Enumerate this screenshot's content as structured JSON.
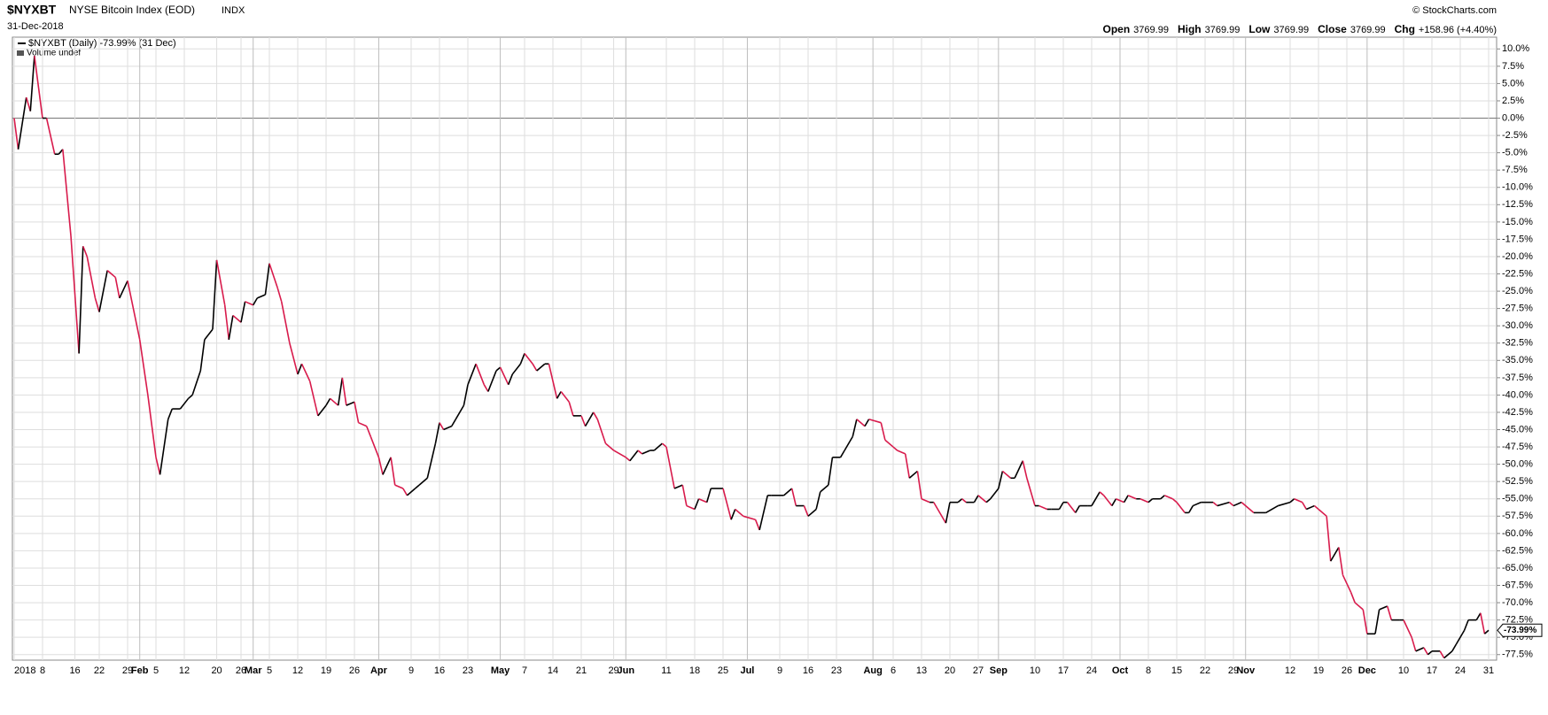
{
  "header": {
    "symbol": "$NYXBT",
    "name": "NYSE Bitcoin Index (EOD)",
    "exchange": "INDX",
    "date": "31-Dec-2018",
    "source": "© StockCharts.com",
    "quote": [
      {
        "label": "Open",
        "value": "3769.99"
      },
      {
        "label": "High",
        "value": "3769.99"
      },
      {
        "label": "Low",
        "value": "3769.99"
      },
      {
        "label": "Close",
        "value": "3769.99"
      },
      {
        "label": "Chg",
        "value": "+158.96 (+4.40%)"
      }
    ],
    "legend": "$NYXBT (Daily) -73.99% (31 Dec)",
    "volume": "Volume undef"
  },
  "chart_data": {
    "type": "line",
    "grid": true,
    "last_label": "-73.99%",
    "xlim": [
      "2018-01-01",
      "2018-12-31"
    ],
    "ylim": [
      -78.3,
      11.7
    ],
    "yticks": [
      {
        "value": 10,
        "label": "10.0%"
      },
      {
        "value": 7.5,
        "label": "7.5%"
      },
      {
        "value": 5,
        "label": "5.0%"
      },
      {
        "value": 2.5,
        "label": "2.5%"
      },
      {
        "value": 0,
        "label": "0.0%"
      },
      {
        "value": -2.5,
        "label": "-2.5%"
      },
      {
        "value": -5,
        "label": "-5.0%"
      },
      {
        "value": -7.5,
        "label": "-7.5%"
      },
      {
        "value": -10,
        "label": "-10.0%"
      },
      {
        "value": -12.5,
        "label": "-12.5%"
      },
      {
        "value": -15,
        "label": "-15.0%"
      },
      {
        "value": -17.5,
        "label": "-17.5%"
      },
      {
        "value": -20,
        "label": "-20.0%"
      },
      {
        "value": -22.5,
        "label": "-22.5%"
      },
      {
        "value": -25,
        "label": "-25.0%"
      },
      {
        "value": -27.5,
        "label": "-27.5%"
      },
      {
        "value": -30,
        "label": "-30.0%"
      },
      {
        "value": -32.5,
        "label": "-32.5%"
      },
      {
        "value": -35,
        "label": "-35.0%"
      },
      {
        "value": -37.5,
        "label": "-37.5%"
      },
      {
        "value": -40,
        "label": "-40.0%"
      },
      {
        "value": -42.5,
        "label": "-42.5%"
      },
      {
        "value": -45,
        "label": "-45.0%"
      },
      {
        "value": -47.5,
        "label": "-47.5%"
      },
      {
        "value": -50,
        "label": "-50.0%"
      },
      {
        "value": -52.5,
        "label": "-52.5%"
      },
      {
        "value": -55,
        "label": "-55.0%"
      },
      {
        "value": -57.5,
        "label": "-57.5%"
      },
      {
        "value": -60,
        "label": "-60.0%"
      },
      {
        "value": -62.5,
        "label": "-62.5%"
      },
      {
        "value": -65,
        "label": "-65.0%"
      },
      {
        "value": -67.5,
        "label": "-67.5%"
      },
      {
        "value": -70,
        "label": "-70.0%"
      },
      {
        "value": -72.5,
        "label": "-72.5%"
      },
      {
        "value": -75,
        "label": "-75.0%"
      },
      {
        "value": -77.5,
        "label": "-77.5%"
      }
    ],
    "xticks": [
      {
        "value": "2018-01-01",
        "label": "2018"
      },
      {
        "value": "2018-01-08",
        "label": "8"
      },
      {
        "value": "2018-01-16",
        "label": "16"
      },
      {
        "value": "2018-01-22",
        "label": "22"
      },
      {
        "value": "2018-01-29",
        "label": "29"
      },
      {
        "value": "2018-02-01",
        "label": "Feb"
      },
      {
        "value": "2018-02-05",
        "label": "5"
      },
      {
        "value": "2018-02-12",
        "label": "12"
      },
      {
        "value": "2018-02-20",
        "label": "20"
      },
      {
        "value": "2018-02-26",
        "label": "26"
      },
      {
        "value": "2018-03-01",
        "label": "Mar"
      },
      {
        "value": "2018-03-05",
        "label": "5"
      },
      {
        "value": "2018-03-12",
        "label": "12"
      },
      {
        "value": "2018-03-19",
        "label": "19"
      },
      {
        "value": "2018-03-26",
        "label": "26"
      },
      {
        "value": "2018-04-01",
        "label": "Apr"
      },
      {
        "value": "2018-04-09",
        "label": "9"
      },
      {
        "value": "2018-04-16",
        "label": "16"
      },
      {
        "value": "2018-04-23",
        "label": "23"
      },
      {
        "value": "2018-05-01",
        "label": "May"
      },
      {
        "value": "2018-05-07",
        "label": "7"
      },
      {
        "value": "2018-05-14",
        "label": "14"
      },
      {
        "value": "2018-05-21",
        "label": "21"
      },
      {
        "value": "2018-05-29",
        "label": "29"
      },
      {
        "value": "2018-06-01",
        "label": "Jun"
      },
      {
        "value": "2018-06-11",
        "label": "11"
      },
      {
        "value": "2018-06-18",
        "label": "18"
      },
      {
        "value": "2018-06-25",
        "label": "25"
      },
      {
        "value": "2018-07-01",
        "label": "Jul"
      },
      {
        "value": "2018-07-09",
        "label": "9"
      },
      {
        "value": "2018-07-16",
        "label": "16"
      },
      {
        "value": "2018-07-23",
        "label": "23"
      },
      {
        "value": "2018-08-01",
        "label": "Aug"
      },
      {
        "value": "2018-08-06",
        "label": "6"
      },
      {
        "value": "2018-08-13",
        "label": "13"
      },
      {
        "value": "2018-08-20",
        "label": "20"
      },
      {
        "value": "2018-08-27",
        "label": "27"
      },
      {
        "value": "2018-09-01",
        "label": "Sep"
      },
      {
        "value": "2018-09-10",
        "label": "10"
      },
      {
        "value": "2018-09-17",
        "label": "17"
      },
      {
        "value": "2018-09-24",
        "label": "24"
      },
      {
        "value": "2018-10-01",
        "label": "Oct"
      },
      {
        "value": "2018-10-08",
        "label": "8"
      },
      {
        "value": "2018-10-15",
        "label": "15"
      },
      {
        "value": "2018-10-22",
        "label": "22"
      },
      {
        "value": "2018-10-29",
        "label": "29"
      },
      {
        "value": "2018-11-01",
        "label": "Nov"
      },
      {
        "value": "2018-11-12",
        "label": "12"
      },
      {
        "value": "2018-11-19",
        "label": "19"
      },
      {
        "value": "2018-11-26",
        "label": "26"
      },
      {
        "value": "2018-12-01",
        "label": "Dec"
      },
      {
        "value": "2018-12-10",
        "label": "10"
      },
      {
        "value": "2018-12-17",
        "label": "17"
      },
      {
        "value": "2018-12-24",
        "label": "24"
      },
      {
        "value": "2018-12-31",
        "label": "31"
      }
    ],
    "series": [
      {
        "name": "$NYXBT",
        "up_color": "#000000",
        "down_color": "#d81b4c",
        "x": [
          "2018-01-01",
          "2018-01-02",
          "2018-01-04",
          "2018-01-05",
          "2018-01-06",
          "2018-01-08",
          "2018-01-09",
          "2018-01-11",
          "2018-01-12",
          "2018-01-13",
          "2018-01-15",
          "2018-01-17",
          "2018-01-18",
          "2018-01-19",
          "2018-01-21",
          "2018-01-22",
          "2018-01-24",
          "2018-01-26",
          "2018-01-27",
          "2018-01-29",
          "2018-02-01",
          "2018-02-03",
          "2018-02-05",
          "2018-02-06",
          "2018-02-08",
          "2018-02-09",
          "2018-02-11",
          "2018-02-13",
          "2018-02-14",
          "2018-02-16",
          "2018-02-17",
          "2018-02-19",
          "2018-02-20",
          "2018-02-22",
          "2018-02-23",
          "2018-02-24",
          "2018-02-26",
          "2018-02-27",
          "2018-03-01",
          "2018-03-02",
          "2018-03-04",
          "2018-03-05",
          "2018-03-07",
          "2018-03-08",
          "2018-03-10",
          "2018-03-12",
          "2018-03-13",
          "2018-03-15",
          "2018-03-17",
          "2018-03-19",
          "2018-03-20",
          "2018-03-22",
          "2018-03-23",
          "2018-03-24",
          "2018-03-26",
          "2018-03-27",
          "2018-03-29",
          "2018-03-30",
          "2018-04-01",
          "2018-04-02",
          "2018-04-04",
          "2018-04-05",
          "2018-04-07",
          "2018-04-08",
          "2018-04-10",
          "2018-04-11",
          "2018-04-13",
          "2018-04-15",
          "2018-04-16",
          "2018-04-17",
          "2018-04-19",
          "2018-04-20",
          "2018-04-22",
          "2018-04-23",
          "2018-04-25",
          "2018-04-27",
          "2018-04-28",
          "2018-04-30",
          "2018-05-01",
          "2018-05-03",
          "2018-05-04",
          "2018-05-06",
          "2018-05-07",
          "2018-05-09",
          "2018-05-10",
          "2018-05-12",
          "2018-05-13",
          "2018-05-15",
          "2018-05-16",
          "2018-05-18",
          "2018-05-19",
          "2018-05-21",
          "2018-05-22",
          "2018-05-24",
          "2018-05-25",
          "2018-05-27",
          "2018-05-29",
          "2018-06-01",
          "2018-06-02",
          "2018-06-04",
          "2018-06-05",
          "2018-06-07",
          "2018-06-08",
          "2018-06-10",
          "2018-06-11",
          "2018-06-13",
          "2018-06-15",
          "2018-06-16",
          "2018-06-18",
          "2018-06-19",
          "2018-06-21",
          "2018-06-22",
          "2018-06-25",
          "2018-06-27",
          "2018-06-28",
          "2018-06-30",
          "2018-07-03",
          "2018-07-04",
          "2018-07-06",
          "2018-07-07",
          "2018-07-09",
          "2018-07-10",
          "2018-07-12",
          "2018-07-13",
          "2018-07-15",
          "2018-07-16",
          "2018-07-18",
          "2018-07-19",
          "2018-07-21",
          "2018-07-22",
          "2018-07-24",
          "2018-07-25",
          "2018-07-27",
          "2018-07-28",
          "2018-07-30",
          "2018-07-31",
          "2018-08-03",
          "2018-08-04",
          "2018-08-06",
          "2018-08-07",
          "2018-08-09",
          "2018-08-10",
          "2018-08-12",
          "2018-08-13",
          "2018-08-15",
          "2018-08-16",
          "2018-08-19",
          "2018-08-20",
          "2018-08-22",
          "2018-08-23",
          "2018-08-24",
          "2018-08-26",
          "2018-08-27",
          "2018-08-29",
          "2018-08-30",
          "2018-09-01",
          "2018-09-02",
          "2018-09-04",
          "2018-09-05",
          "2018-09-07",
          "2018-09-08",
          "2018-09-10",
          "2018-09-11",
          "2018-09-13",
          "2018-09-14",
          "2018-09-16",
          "2018-09-17",
          "2018-09-18",
          "2018-09-20",
          "2018-09-21",
          "2018-09-23",
          "2018-09-24",
          "2018-09-26",
          "2018-09-27",
          "2018-09-29",
          "2018-09-30",
          "2018-10-02",
          "2018-10-03",
          "2018-10-05",
          "2018-10-06",
          "2018-10-08",
          "2018-10-09",
          "2018-10-11",
          "2018-10-12",
          "2018-10-14",
          "2018-10-15",
          "2018-10-17",
          "2018-10-18",
          "2018-10-19",
          "2018-10-21",
          "2018-10-22",
          "2018-10-24",
          "2018-10-25",
          "2018-10-28",
          "2018-10-29",
          "2018-10-31",
          "2018-11-03",
          "2018-11-06",
          "2018-11-09",
          "2018-11-12",
          "2018-11-13",
          "2018-11-15",
          "2018-11-16",
          "2018-11-18",
          "2018-11-19",
          "2018-11-21",
          "2018-11-22",
          "2018-11-24",
          "2018-11-25",
          "2018-11-27",
          "2018-11-28",
          "2018-11-30",
          "2018-12-01",
          "2018-12-03",
          "2018-12-04",
          "2018-12-06",
          "2018-12-07",
          "2018-12-09",
          "2018-12-10",
          "2018-12-12",
          "2018-12-13",
          "2018-12-15",
          "2018-12-16",
          "2018-12-17",
          "2018-12-19",
          "2018-12-20",
          "2018-12-22",
          "2018-12-23",
          "2018-12-25",
          "2018-12-26",
          "2018-12-28",
          "2018-12-29",
          "2018-12-30",
          "2018-12-31"
        ],
        "values": [
          0,
          -4.5,
          3,
          1,
          9,
          0,
          0,
          -5.2,
          -5.2,
          -4.5,
          -17,
          -34,
          -18.5,
          -20,
          -26,
          -28,
          -22,
          -23,
          -26,
          -23.5,
          -32,
          -40,
          -49,
          -51.5,
          -43.5,
          -42,
          -42,
          -40.5,
          -40,
          -36.5,
          -32,
          -30.5,
          -20.5,
          -27,
          -32,
          -28.5,
          -29.5,
          -26.5,
          -27,
          -26,
          -25.5,
          -21,
          -24.5,
          -26.5,
          -32.5,
          -37,
          -35.5,
          -38,
          -43,
          -41.5,
          -40.5,
          -41.5,
          -37.5,
          -41.5,
          -41,
          -44,
          -44.5,
          -46,
          -49,
          -51.5,
          -49,
          -53,
          -53.5,
          -54.5,
          -53.5,
          -53,
          -52,
          -47,
          -44,
          -45,
          -44.5,
          -43.5,
          -41.5,
          -38.5,
          -35.5,
          -38.5,
          -39.5,
          -36.5,
          -36,
          -38.5,
          -37,
          -35.5,
          -34,
          -35.5,
          -36.5,
          -35.5,
          -35.5,
          -40.5,
          -39.5,
          -41,
          -43,
          -43,
          -44.5,
          -42.5,
          -43.5,
          -47,
          -48,
          -49,
          -49.5,
          -48,
          -48.5,
          -48,
          -48,
          -47,
          -47.5,
          -53.5,
          -53,
          -56,
          -56.5,
          -55,
          -55.5,
          -53.5,
          -53.5,
          -58,
          -56.5,
          -57.5,
          -58,
          -59.5,
          -54.5,
          -54.5,
          -54.5,
          -54.5,
          -53.5,
          -56,
          -56,
          -57.5,
          -56.5,
          -54,
          -53,
          -49,
          -49,
          -48,
          -46,
          -43.5,
          -44.5,
          -43.5,
          -44,
          -46.5,
          -47.5,
          -48,
          -48.5,
          -52,
          -51,
          -55,
          -55.5,
          -55.5,
          -58.5,
          -55.5,
          -55.5,
          -55,
          -55.5,
          -55.5,
          -54.5,
          -55.5,
          -55,
          -53.5,
          -51,
          -52,
          -52,
          -49.5,
          -52,
          -56,
          -56,
          -56.5,
          -56.5,
          -56.5,
          -55.5,
          -55.5,
          -57,
          -56,
          -56,
          -56,
          -54,
          -54.5,
          -56,
          -55,
          -55.5,
          -54.5,
          -55,
          -55,
          -55.5,
          -55,
          -55,
          -54.5,
          -55,
          -55.5,
          -57,
          -57,
          -56,
          -55.5,
          -55.5,
          -55.5,
          -56,
          -55.5,
          -56,
          -55.5,
          -57,
          -57,
          -56,
          -55.5,
          -55,
          -55.5,
          -56.5,
          -56,
          -56.5,
          -57.5,
          -64,
          -62,
          -66,
          -68.5,
          -70,
          -71,
          -74.5,
          -74.5,
          -71,
          -70.5,
          -72.5,
          -72.5,
          -72.5,
          -75,
          -77,
          -76.5,
          -77.5,
          -77,
          -77,
          -78,
          -77,
          -76,
          -74,
          -72.5,
          -72.5,
          -71.5,
          -74.5,
          -73.99
        ]
      }
    ]
  }
}
